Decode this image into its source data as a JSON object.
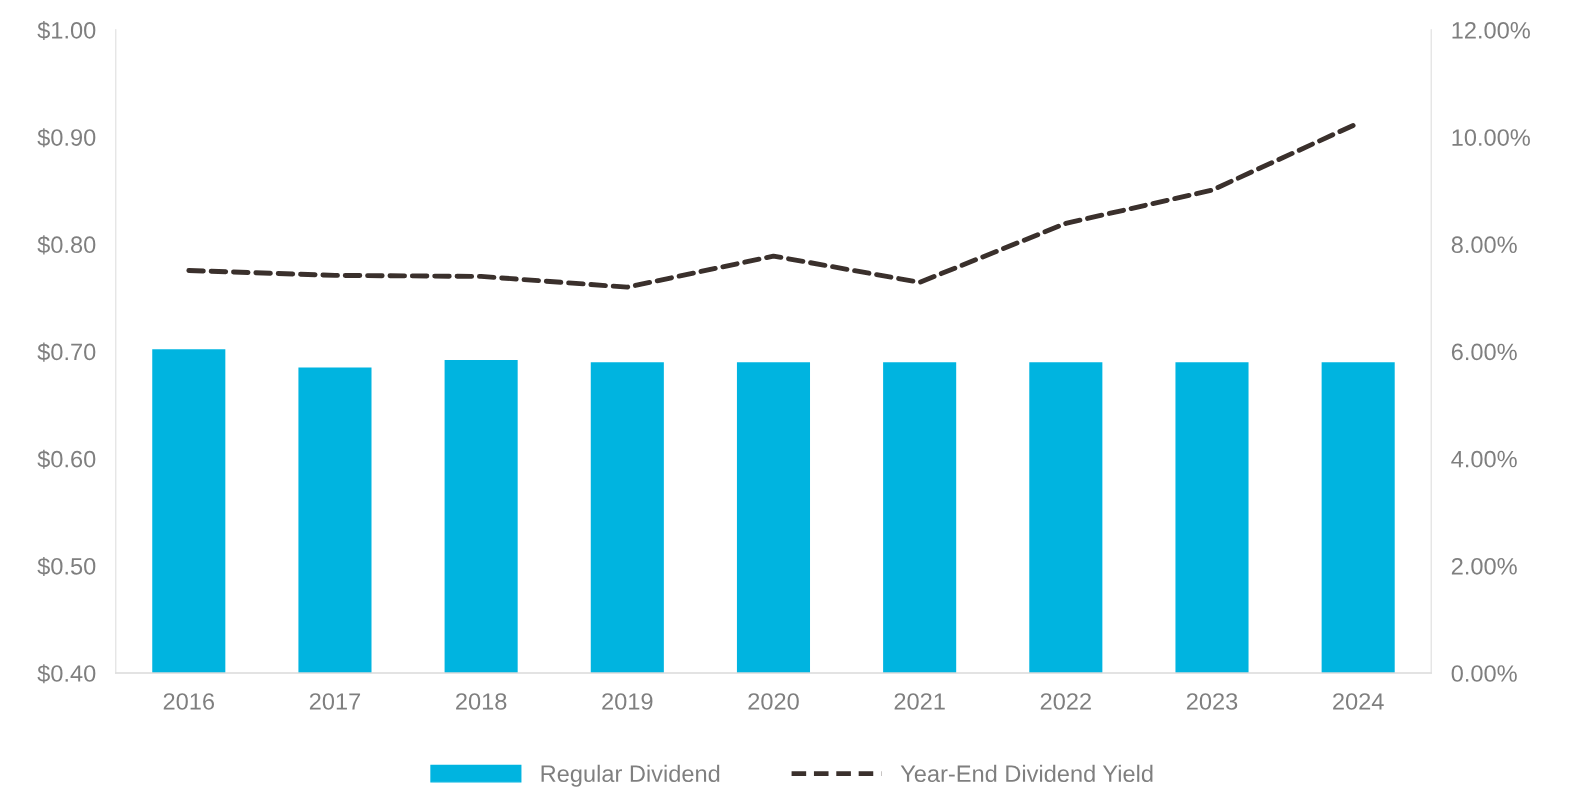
{
  "chart_data": {
    "type": "bar",
    "categories": [
      "2016",
      "2017",
      "2018",
      "2019",
      "2020",
      "2021",
      "2022",
      "2023",
      "2024"
    ],
    "series": [
      {
        "name": "Regular Dividend",
        "color": "#00b4e0",
        "values": [
          0.702,
          0.685,
          0.692,
          0.69,
          0.69,
          0.69,
          0.69,
          0.69,
          0.69
        ]
      },
      {
        "name": "Year-End Dividend Yield",
        "type": "line",
        "axis": "y2",
        "color": "#3a302c",
        "line_style": "dashed",
        "values": [
          7.51,
          7.42,
          7.4,
          7.2,
          7.78,
          7.29,
          8.39,
          9.01,
          10.26
        ]
      }
    ],
    "ylim": [
      0.4,
      1.0
    ],
    "yticks": [
      {
        "value": 0.4,
        "label": "$0.40"
      },
      {
        "value": 0.5,
        "label": "$0.50"
      },
      {
        "value": 0.6,
        "label": "$0.60"
      },
      {
        "value": 0.7,
        "label": "$0.70"
      },
      {
        "value": 0.8,
        "label": "$0.80"
      },
      {
        "value": 0.9,
        "label": "$0.90"
      },
      {
        "value": 1.0,
        "label": "$1.00"
      }
    ],
    "y2lim": [
      0,
      12
    ],
    "y2ticks": [
      {
        "value": 0,
        "label": "0.00%"
      },
      {
        "value": 2,
        "label": "2.00%"
      },
      {
        "value": 4,
        "label": "4.00%"
      },
      {
        "value": 6,
        "label": "6.00%"
      },
      {
        "value": 8,
        "label": "8.00%"
      },
      {
        "value": 10,
        "label": "10.00%"
      },
      {
        "value": 12,
        "label": "12.00%"
      }
    ],
    "grid": false,
    "legend": "bottom"
  }
}
